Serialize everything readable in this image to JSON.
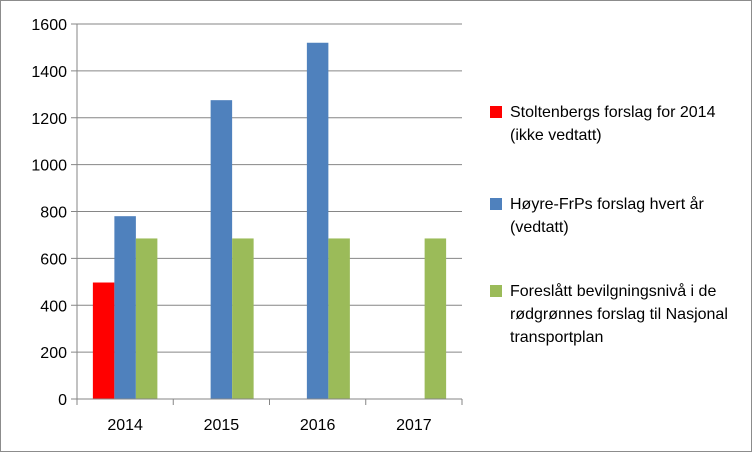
{
  "chart_data": {
    "type": "bar",
    "categories": [
      "2014",
      "2015",
      "2016",
      "2017"
    ],
    "series": [
      {
        "name": "Stoltenbergs forslag for 2014 (ikke vedtatt)",
        "color": "#ff0000",
        "values": [
          497,
          null,
          null,
          null
        ]
      },
      {
        "name": "Høyre-FrPs forslag hvert år (vedtatt)",
        "color": "#4f81bd",
        "values": [
          780,
          1275,
          1520,
          null
        ]
      },
      {
        "name": "Foreslått bevilgningsnivå i de rødgrønnes forslag til Nasjonal transportplan",
        "color": "#9bbb59",
        "values": [
          685,
          685,
          685,
          685
        ]
      }
    ],
    "ylim": [
      0,
      1600
    ],
    "yticks": [
      "0",
      "200",
      "400",
      "600",
      "800",
      "1000",
      "1200",
      "1400",
      "1600"
    ],
    "grid": true,
    "legend_position": "right",
    "title": "",
    "xlabel": "",
    "ylabel": ""
  }
}
